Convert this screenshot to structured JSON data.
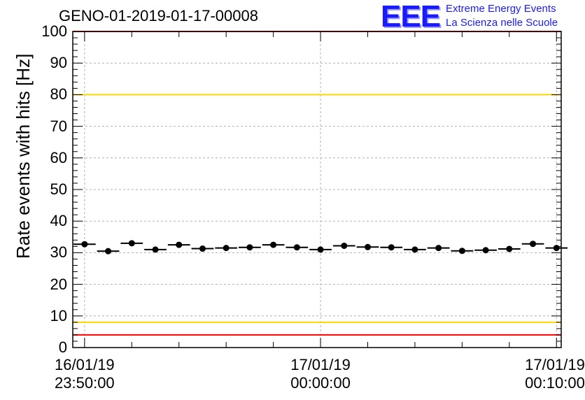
{
  "chart_data": {
    "type": "scatter",
    "title": "GENO-01-2019-01-17-00008",
    "ylabel": "Rate events with hits [Hz]",
    "xlabel": "",
    "ylim": [
      0,
      100
    ],
    "xlim_minutes": [
      -10.5,
      10.2
    ],
    "grid": true,
    "yticks": [
      "0",
      "10",
      "20",
      "30",
      "40",
      "50",
      "60",
      "70",
      "80",
      "90",
      "100"
    ],
    "xticks": [
      {
        "date": "16/01/19",
        "time": "23:50:00",
        "minute": -10
      },
      {
        "date": "17/01/19",
        "time": "00:00:00",
        "minute": 0
      },
      {
        "date": "17/01/19",
        "time": "00:10:00",
        "minute": 10
      }
    ],
    "series": [
      {
        "x_minutes": [
          -10.0,
          -9.0,
          -8.0,
          -7.0,
          -6.0,
          -5.0,
          -4.0,
          -3.0,
          -2.0,
          -1.0,
          0.0,
          1.0,
          2.0,
          3.0,
          4.0,
          5.0,
          6.0,
          7.0,
          8.0,
          9.0,
          10.0
        ],
        "values": [
          32.7,
          30.5,
          33.0,
          31.0,
          32.5,
          31.3,
          31.5,
          31.7,
          32.5,
          31.7,
          31.0,
          32.2,
          31.8,
          31.7,
          31.0,
          31.5,
          30.6,
          30.8,
          31.2,
          32.8,
          31.5
        ],
        "color": "#000000"
      }
    ],
    "reference_lines": [
      {
        "y": 100,
        "color": "#ff0000"
      },
      {
        "y": 80,
        "color": "#ffd700"
      },
      {
        "y": 8,
        "color": "#ffd700"
      },
      {
        "y": 4,
        "color": "#ff0000"
      }
    ]
  },
  "logo": {
    "mark": "EEE",
    "line1": "Extreme Energy Events",
    "line2": "La Scienza nelle Scuole",
    "color": "#1a1aff"
  }
}
